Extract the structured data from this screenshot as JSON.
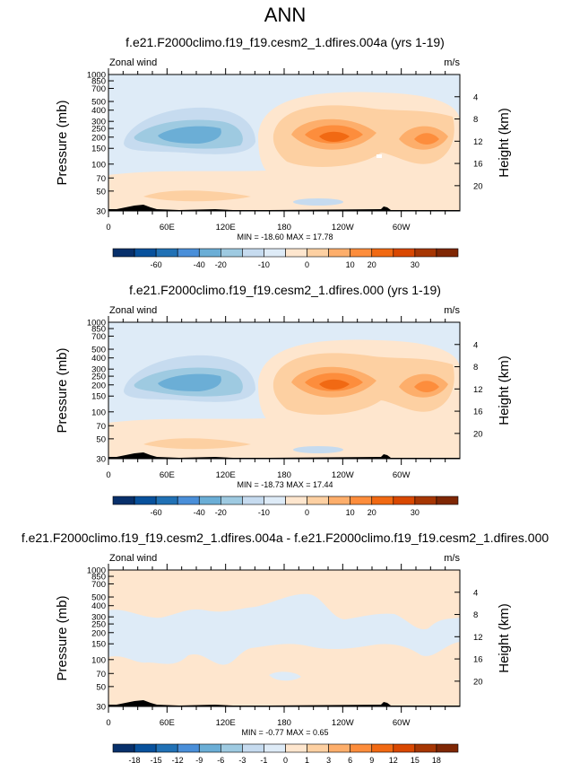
{
  "figure": {
    "title": "ANN"
  },
  "colors": {
    "main_levels": [
      "#08306b",
      "#08519c",
      "#2171b5",
      "#4a8fd9",
      "#6baed6",
      "#9ecae1",
      "#c6dbef",
      "#deebf7",
      "#fee6ce",
      "#fdd0a2",
      "#fdae6b",
      "#fd8d3c",
      "#f16913",
      "#d94801",
      "#a63603",
      "#7f2704"
    ],
    "terrain": "#000000"
  },
  "chart_data": [
    {
      "type": "heatmap",
      "title": "f.e21.F2000climo.f19_f19.cesm2_1.dfires.004a (yrs 1-19)",
      "left_label": "Zonal wind",
      "right_label": "m/s",
      "ylabel": "Pressure (mb)",
      "ylabel_right": "Height (km)",
      "x_ticks": [
        "0",
        "60E",
        "120E",
        "180",
        "120W",
        "60W"
      ],
      "y_ticks": [
        "30",
        "50",
        "70",
        "100",
        "150",
        "200",
        "250",
        "300",
        "400",
        "500",
        "700",
        "850",
        "1000"
      ],
      "y_right_ticks": [
        "20",
        "16",
        "12",
        "8",
        "4"
      ],
      "stats": "MIN = -18.60  MAX = 17.78",
      "colorbar_labels": [
        "-60",
        "-40",
        "-20",
        "-10",
        "0",
        "10",
        "20",
        "30"
      ],
      "features": [
        {
          "lon": 60,
          "p": 150,
          "value": -15
        },
        {
          "lon": 210,
          "p": 150,
          "value": 17.78
        },
        {
          "lon": 295,
          "p": 150,
          "value": 15
        },
        {
          "lon": 225,
          "p": 700,
          "value": 5
        }
      ]
    },
    {
      "type": "heatmap",
      "title": "f.e21.F2000climo.f19_f19.cesm2_1.dfires.000 (yrs 1-19)",
      "left_label": "Zonal wind",
      "right_label": "m/s",
      "ylabel": "Pressure (mb)",
      "ylabel_right": "Height (km)",
      "x_ticks": [
        "0",
        "60E",
        "120E",
        "180",
        "120W",
        "60W"
      ],
      "y_ticks": [
        "30",
        "50",
        "70",
        "100",
        "150",
        "200",
        "250",
        "300",
        "400",
        "500",
        "700",
        "850",
        "1000"
      ],
      "y_right_ticks": [
        "20",
        "16",
        "12",
        "8",
        "4"
      ],
      "stats": "MIN = -18.73  MAX = 17.44",
      "colorbar_labels": [
        "-60",
        "-40",
        "-20",
        "-10",
        "0",
        "10",
        "20",
        "30"
      ],
      "features": [
        {
          "lon": 60,
          "p": 150,
          "value": -15
        },
        {
          "lon": 210,
          "p": 150,
          "value": 17.44
        },
        {
          "lon": 295,
          "p": 150,
          "value": 15
        },
        {
          "lon": 225,
          "p": 700,
          "value": 5
        }
      ]
    },
    {
      "type": "heatmap",
      "title": "f.e21.F2000climo.f19_f19.cesm2_1.dfires.004a - f.e21.F2000climo.f19_f19.cesm2_1.dfires.000",
      "left_label": "Zonal wind",
      "right_label": "m/s",
      "ylabel": "Pressure (mb)",
      "ylabel_right": "Height (km)",
      "x_ticks": [
        "0",
        "60E",
        "120E",
        "180",
        "120W",
        "60W"
      ],
      "y_ticks": [
        "30",
        "50",
        "70",
        "100",
        "150",
        "200",
        "250",
        "300",
        "400",
        "500",
        "700",
        "850",
        "1000"
      ],
      "y_right_ticks": [
        "20",
        "16",
        "12",
        "8",
        "4"
      ],
      "stats": "MIN = -0.77  MAX =  0.65",
      "colorbar_labels": [
        "-18",
        "-15",
        "-12",
        "-9",
        "-6",
        "-3",
        "-1",
        "0",
        "1",
        "3",
        "6",
        "9",
        "12",
        "15",
        "18"
      ]
    }
  ]
}
